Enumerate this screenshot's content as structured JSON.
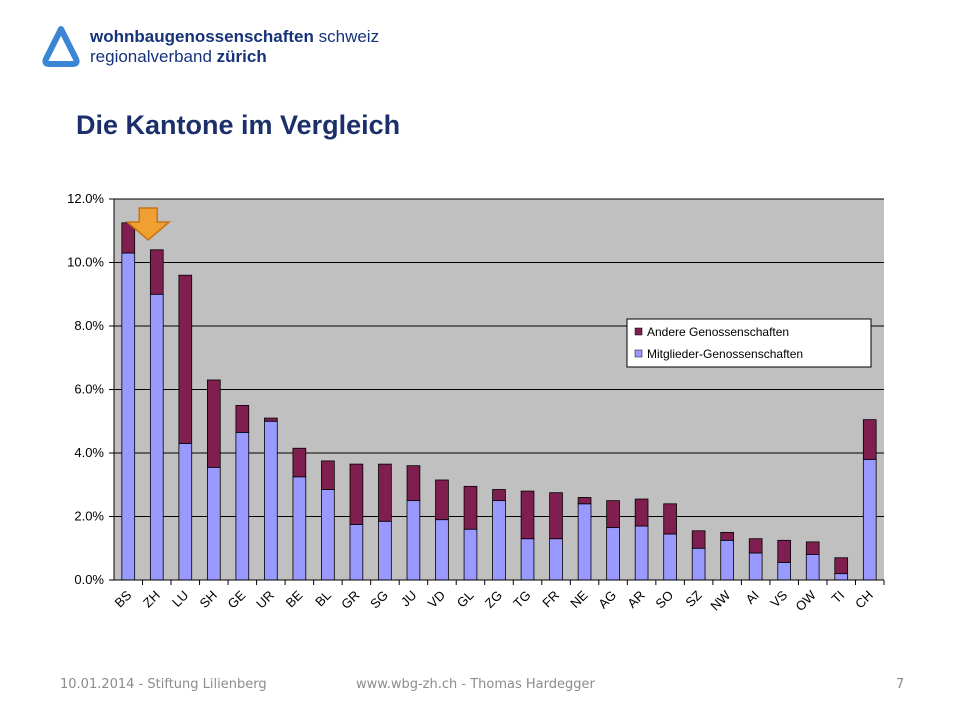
{
  "header": {
    "logo_line1_bold": "wohnbaugenossenschaften",
    "logo_line1_rest": "schweiz",
    "logo_line2_rest": "regionalverband",
    "logo_line2_bold": "zürich",
    "brand_color": "#16337a"
  },
  "slide": {
    "title": "Die Kantone im Vergleich"
  },
  "chart_data": {
    "type": "bar",
    "stacked": true,
    "categories": [
      "BS",
      "ZH",
      "LU",
      "SH",
      "GE",
      "UR",
      "BE",
      "BL",
      "GR",
      "SG",
      "JU",
      "VD",
      "GL",
      "ZG",
      "TG",
      "FR",
      "NE",
      "AG",
      "AR",
      "SO",
      "SZ",
      "NW",
      "AI",
      "VS",
      "OW",
      "TI",
      "CH"
    ],
    "series": [
      {
        "name": "Mitglieder-Genossenschaften",
        "color": "#9999ff",
        "values": [
          10.3,
          9.0,
          4.3,
          3.55,
          4.65,
          5.0,
          3.25,
          2.85,
          1.75,
          1.85,
          2.5,
          1.9,
          1.6,
          2.5,
          1.3,
          1.3,
          2.4,
          1.65,
          1.7,
          1.45,
          1.0,
          1.25,
          0.85,
          0.55,
          0.8,
          0.2,
          3.8
        ]
      },
      {
        "name": "Andere Genossenschaften",
        "color": "#7f1f4f",
        "values": [
          0.95,
          1.4,
          5.3,
          2.75,
          0.85,
          0.1,
          0.9,
          0.9,
          1.9,
          1.8,
          1.1,
          1.25,
          1.35,
          0.35,
          1.5,
          1.45,
          0.2,
          0.85,
          0.85,
          0.95,
          0.55,
          0.25,
          0.45,
          0.7,
          0.4,
          0.5,
          1.25
        ]
      }
    ],
    "ylim": [
      0,
      12
    ],
    "yticks": [
      "0.0%",
      "2.0%",
      "4.0%",
      "6.0%",
      "8.0%",
      "10.0%",
      "12.0%"
    ],
    "grid": true,
    "legend_position": "right",
    "plot_background": "#c0c0c0",
    "annotation": "orange arrow pointing at ZH"
  },
  "footer": {
    "left": "10.01.2014 - Stiftung Lilienberg",
    "center": "www.wbg-zh.ch  - Thomas Hardegger",
    "page": "7"
  }
}
